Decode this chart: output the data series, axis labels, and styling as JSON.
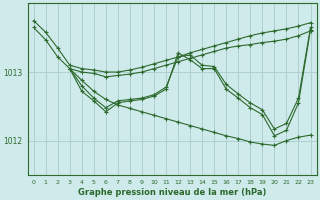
{
  "background_color": "#ceeaea",
  "grid_color": "#b0d0d0",
  "line_color": "#2d6a2d",
  "title": "Graphe pression niveau de la mer (hPa)",
  "xlim": [
    -0.5,
    23.5
  ],
  "ylim": [
    1011.5,
    1014.0
  ],
  "yticks": [
    1012,
    1013
  ],
  "xticks": [
    0,
    1,
    2,
    3,
    4,
    5,
    6,
    7,
    8,
    9,
    10,
    11,
    12,
    13,
    14,
    15,
    16,
    17,
    18,
    19,
    20,
    21,
    22,
    23
  ],
  "series": [
    {
      "x": [
        0,
        1,
        2,
        3,
        4,
        5,
        6,
        7,
        8,
        9,
        10,
        11,
        12,
        13,
        14,
        15,
        16,
        17,
        18,
        19,
        20,
        21,
        22,
        23
      ],
      "y": [
        1013.75,
        1013.58,
        1013.35,
        1013.1,
        1013.05,
        1013.03,
        1013.0,
        1013.0,
        1013.03,
        1013.07,
        1013.12,
        1013.17,
        1013.22,
        1013.28,
        1013.33,
        1013.38,
        1013.43,
        1013.48,
        1013.53,
        1013.57,
        1013.6,
        1013.63,
        1013.67,
        1013.72
      ]
    },
    {
      "x": [
        0,
        1,
        2,
        3,
        4,
        5,
        6,
        7,
        8,
        9,
        10,
        11,
        12,
        13,
        14,
        15,
        16,
        17,
        18,
        19,
        20,
        21,
        22,
        23
      ],
      "y": [
        1013.65,
        1013.47,
        1013.22,
        1013.05,
        1013.0,
        1012.98,
        1012.93,
        1012.95,
        1012.97,
        1013.0,
        1013.05,
        1013.1,
        1013.15,
        1013.2,
        1013.25,
        1013.3,
        1013.35,
        1013.38,
        1013.4,
        1013.43,
        1013.45,
        1013.48,
        1013.53,
        1013.6
      ]
    },
    {
      "x": [
        3,
        4,
        5,
        6,
        7,
        8,
        9,
        10,
        11,
        12,
        13,
        14,
        15,
        16,
        17,
        18,
        19,
        20,
        21,
        22,
        23
      ],
      "y": [
        1013.05,
        1012.88,
        1012.72,
        1012.6,
        1012.52,
        1012.47,
        1012.42,
        1012.37,
        1012.32,
        1012.27,
        1012.22,
        1012.17,
        1012.12,
        1012.07,
        1012.03,
        1011.98,
        1011.95,
        1011.93,
        1012.0,
        1012.05,
        1012.08
      ]
    },
    {
      "x": [
        3,
        4,
        5,
        6,
        7,
        8,
        9,
        10,
        11,
        12,
        13,
        14,
        15,
        16,
        17,
        18,
        19,
        20,
        21,
        22,
        23
      ],
      "y": [
        1013.05,
        1012.72,
        1012.58,
        1012.42,
        1012.55,
        1012.58,
        1012.6,
        1012.65,
        1012.75,
        1013.28,
        1013.18,
        1013.05,
        1013.05,
        1012.75,
        1012.62,
        1012.48,
        1012.38,
        1012.07,
        1012.15,
        1012.55,
        1013.62
      ]
    },
    {
      "x": [
        3,
        4,
        5,
        6,
        7,
        8,
        9,
        10,
        11,
        12,
        13,
        14,
        15,
        16,
        17,
        18,
        19,
        20,
        21,
        22,
        23
      ],
      "y": [
        1013.05,
        1012.8,
        1012.62,
        1012.48,
        1012.58,
        1012.6,
        1012.62,
        1012.67,
        1012.78,
        1013.22,
        1013.25,
        1013.1,
        1013.08,
        1012.82,
        1012.68,
        1012.55,
        1012.45,
        1012.17,
        1012.25,
        1012.62,
        1013.65
      ]
    }
  ]
}
